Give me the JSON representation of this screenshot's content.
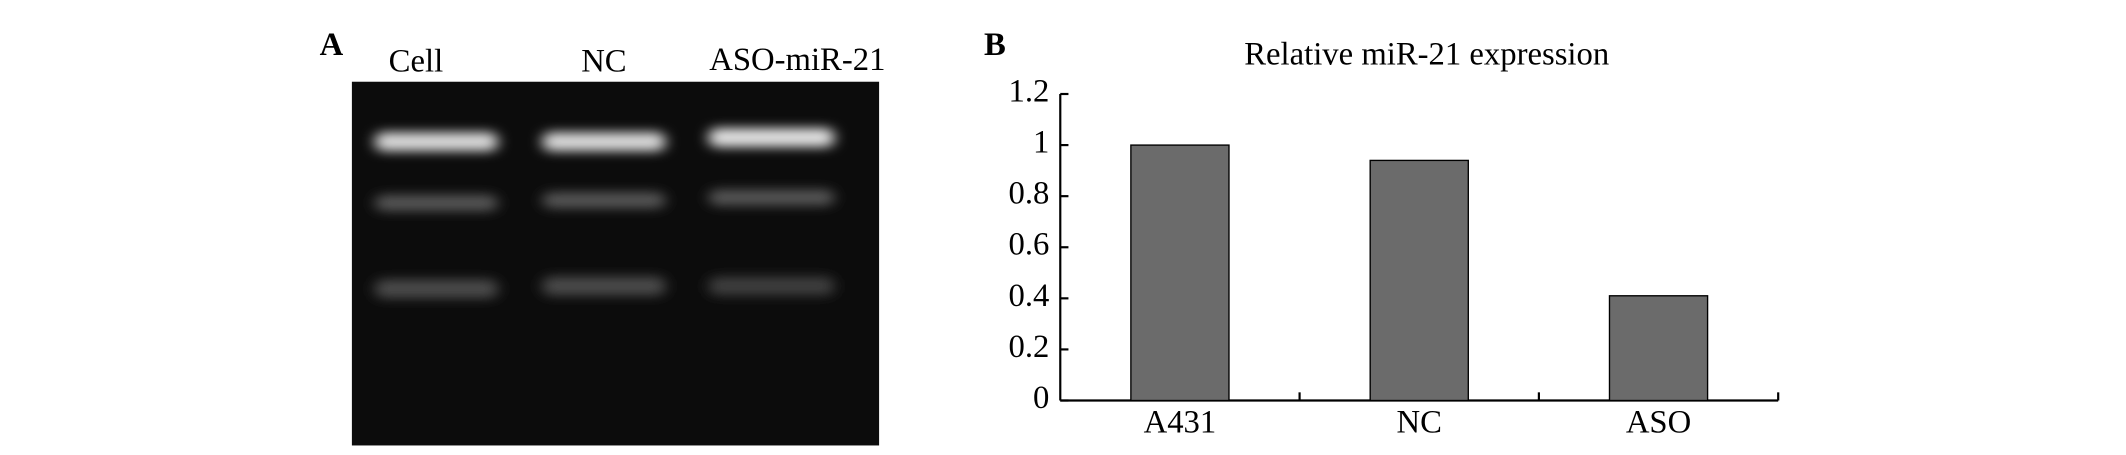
{
  "gel": {
    "panel_label": "A",
    "lanes": [
      "Cell",
      "NC",
      "ASO-miR-21"
    ]
  },
  "chart_data": {
    "type": "bar",
    "panel_label": "B",
    "title": "Relative miR-21 expression",
    "categories": [
      "A431",
      "NC",
      "ASO"
    ],
    "values": [
      1.0,
      0.94,
      0.41
    ],
    "color": "#6b6b6b",
    "ylim": [
      0,
      1.2
    ],
    "yticks": [
      0,
      0.2,
      0.4,
      0.6,
      0.8,
      1,
      1.2
    ],
    "grid": false
  }
}
